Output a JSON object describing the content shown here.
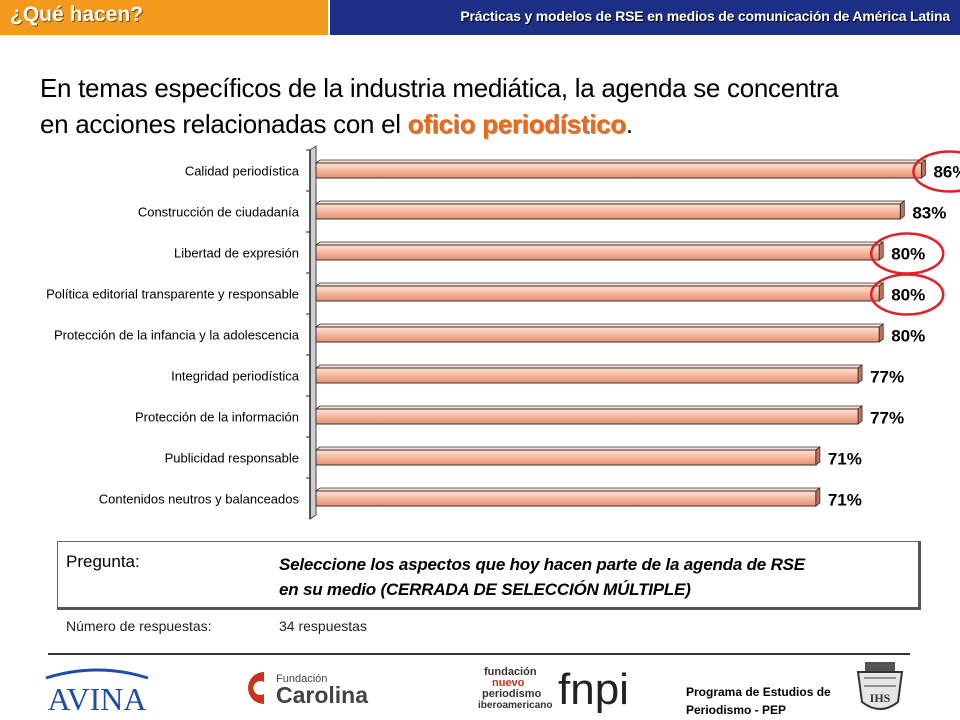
{
  "header": {
    "title": "¿Qué hacen?",
    "subtitle": "Prácticas y modelos de RSE en medios de comunicación de América Latina",
    "left_color": "#f39a1c",
    "right_color": "#1b2f86"
  },
  "headline": {
    "line1": "En temas específicos de la industria mediática, la agenda se concentra",
    "line2_prefix": "en acciones relacionadas con el ",
    "highlight": "oficio periodístico",
    "line2_suffix": "."
  },
  "chart_data": {
    "type": "bar",
    "orientation": "horizontal",
    "categories": [
      "Calidad periodística",
      "Construcción de ciudadanía",
      "Libertad de expresión",
      "Política editorial transparente y responsable",
      "Protección de la infancia y la adolescencia",
      "Integridad periodística",
      "Protección de la  información",
      "Publicidad responsable",
      "Contenidos neutros y balanceados"
    ],
    "values": [
      86,
      83,
      80,
      80,
      80,
      77,
      77,
      71,
      71
    ],
    "value_labels": [
      "86%",
      "83%",
      "80%",
      "80%",
      "80%",
      "77%",
      "77%",
      "71%",
      "71%"
    ],
    "circled": [
      true,
      false,
      true,
      true,
      false,
      false,
      false,
      false,
      false
    ],
    "xlim": [
      0,
      100
    ],
    "bar_color": "#f4b8a0",
    "circle_color": "#e0212a",
    "grid": false
  },
  "question": {
    "label": "Pregunta:",
    "text_line1": "Seleccione los aspectos que hoy hacen parte de la agenda de RSE",
    "text_line2": "en su medio (CERRADA DE SELECCIÓN MÚLTIPLE)",
    "responses_label": "Número de respuestas:",
    "responses_value": "34 respuestas"
  },
  "footer": {
    "avina": "AVINA",
    "carolina_top": "Fundación",
    "carolina_bottom": "Carolina",
    "fnpi_line1": "fundación",
    "fnpi_line2": "nuevo",
    "fnpi_line3": "periodismo",
    "fnpi_line4": "iberoamericano",
    "fnpi_mark": "fnpi",
    "program_line1": "Programa de Estudios de",
    "program_line2": "Periodismo - PEP",
    "seal_text": "IHS"
  }
}
